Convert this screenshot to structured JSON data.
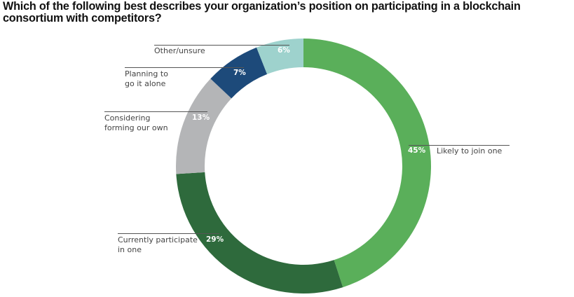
{
  "title": "Which of the following best describes your organization’s position on participating in a blockchain consortium with competitors?",
  "chart_data": {
    "type": "pie",
    "subtype": "donut",
    "title": "Which of the following best describes your organization’s position on participating in a blockchain consortium with competitors?",
    "categories": [
      "Likely to join one",
      "Currently participate in one",
      "Considering forming our own",
      "Planning to go it alone",
      "Other/unsure"
    ],
    "values": [
      45,
      29,
      13,
      7,
      6
    ],
    "unit": "%",
    "colors": [
      "#5aaf5a",
      "#2e6a3c",
      "#b4b5b7",
      "#1d4a7a",
      "#9ed2cd"
    ],
    "start_angle_deg": 0,
    "direction": "clockwise",
    "legend": "none (direct labels with leader lines)"
  },
  "slices": [
    {
      "label": "Likely to join one",
      "pct": "45%",
      "color": "#5aaf5a"
    },
    {
      "label": "Currently participate\nin one",
      "pct": "29%",
      "color": "#2e6a3c"
    },
    {
      "label": "Considering\nforming our own",
      "pct": "13%",
      "color": "#b4b5b7"
    },
    {
      "label": "Planning to\ngo it alone",
      "pct": "7%",
      "color": "#1d4a7a"
    },
    {
      "label": "Other/unsure",
      "pct": "6%",
      "color": "#9ed2cd"
    }
  ]
}
